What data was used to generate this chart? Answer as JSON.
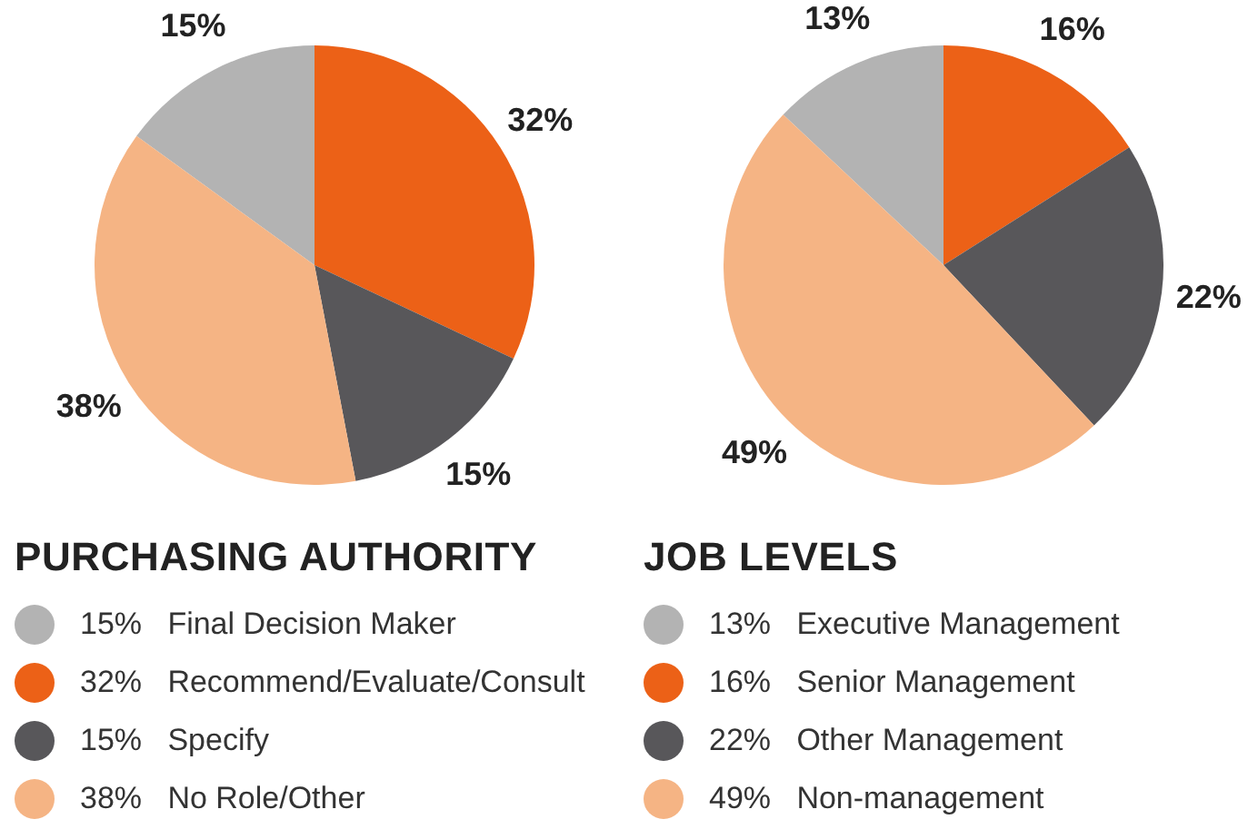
{
  "chart_data": [
    {
      "type": "pie",
      "title": "PURCHASING AUTHORITY",
      "categories": [
        "Final Decision Maker",
        "Recommend/Evaluate/Consult",
        "Specify",
        "No Role/Other"
      ],
      "values": [
        15,
        32,
        15,
        38
      ],
      "colors": [
        "#b3b3b3",
        "#ec6117",
        "#58575a",
        "#f5b484"
      ],
      "value_labels": [
        "15%",
        "32%",
        "15%",
        "38%"
      ],
      "legend": "bottom"
    },
    {
      "type": "pie",
      "title": "JOB LEVELS",
      "categories": [
        "Executive Management",
        "Senior Management",
        "Other Management",
        "Non-management"
      ],
      "values": [
        13,
        16,
        22,
        49
      ],
      "colors": [
        "#b3b3b3",
        "#ec6117",
        "#58575a",
        "#f5b484"
      ],
      "value_labels": [
        "13%",
        "16%",
        "22%",
        "49%"
      ],
      "legend": "bottom"
    }
  ]
}
